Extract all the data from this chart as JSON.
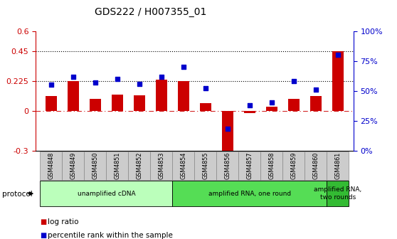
{
  "title": "GDS222 / H007355_01",
  "samples": [
    "GSM4848",
    "GSM4849",
    "GSM4850",
    "GSM4851",
    "GSM4852",
    "GSM4853",
    "GSM4854",
    "GSM4855",
    "GSM4856",
    "GSM4857",
    "GSM4858",
    "GSM4859",
    "GSM4860",
    "GSM4861"
  ],
  "log_ratio": [
    0.11,
    0.225,
    0.09,
    0.12,
    0.115,
    0.235,
    0.225,
    0.055,
    -0.32,
    -0.02,
    0.03,
    0.09,
    0.11,
    0.45
  ],
  "percentile": [
    55,
    62,
    57,
    60,
    56,
    62,
    70,
    52,
    18,
    38,
    40,
    58,
    51,
    80
  ],
  "bar_color": "#cc0000",
  "dot_color": "#0000cc",
  "left_ylim": [
    -0.3,
    0.6
  ],
  "right_ylim": [
    0,
    100
  ],
  "left_yticks": [
    -0.3,
    0,
    0.225,
    0.45,
    0.6
  ],
  "right_yticks": [
    0,
    25,
    50,
    75,
    100
  ],
  "hlines": [
    0.225,
    0.45
  ],
  "zero_line": 0,
  "protocols": [
    {
      "label": "unamplified cDNA",
      "start": 0,
      "end": 5,
      "color": "#bbffbb"
    },
    {
      "label": "amplified RNA, one round",
      "start": 6,
      "end": 12,
      "color": "#55dd55"
    },
    {
      "label": "amplified RNA,\ntwo rounds",
      "start": 13,
      "end": 13,
      "color": "#33bb33"
    }
  ],
  "protocol_label": "protocol",
  "legend_items": [
    {
      "label": "log ratio",
      "color": "#cc0000",
      "marker": "s"
    },
    {
      "label": "percentile rank within the sample",
      "color": "#0000cc",
      "marker": "s"
    }
  ],
  "bar_width": 0.5,
  "tick_label_bg": "#cccccc",
  "tick_label_border": "#888888"
}
